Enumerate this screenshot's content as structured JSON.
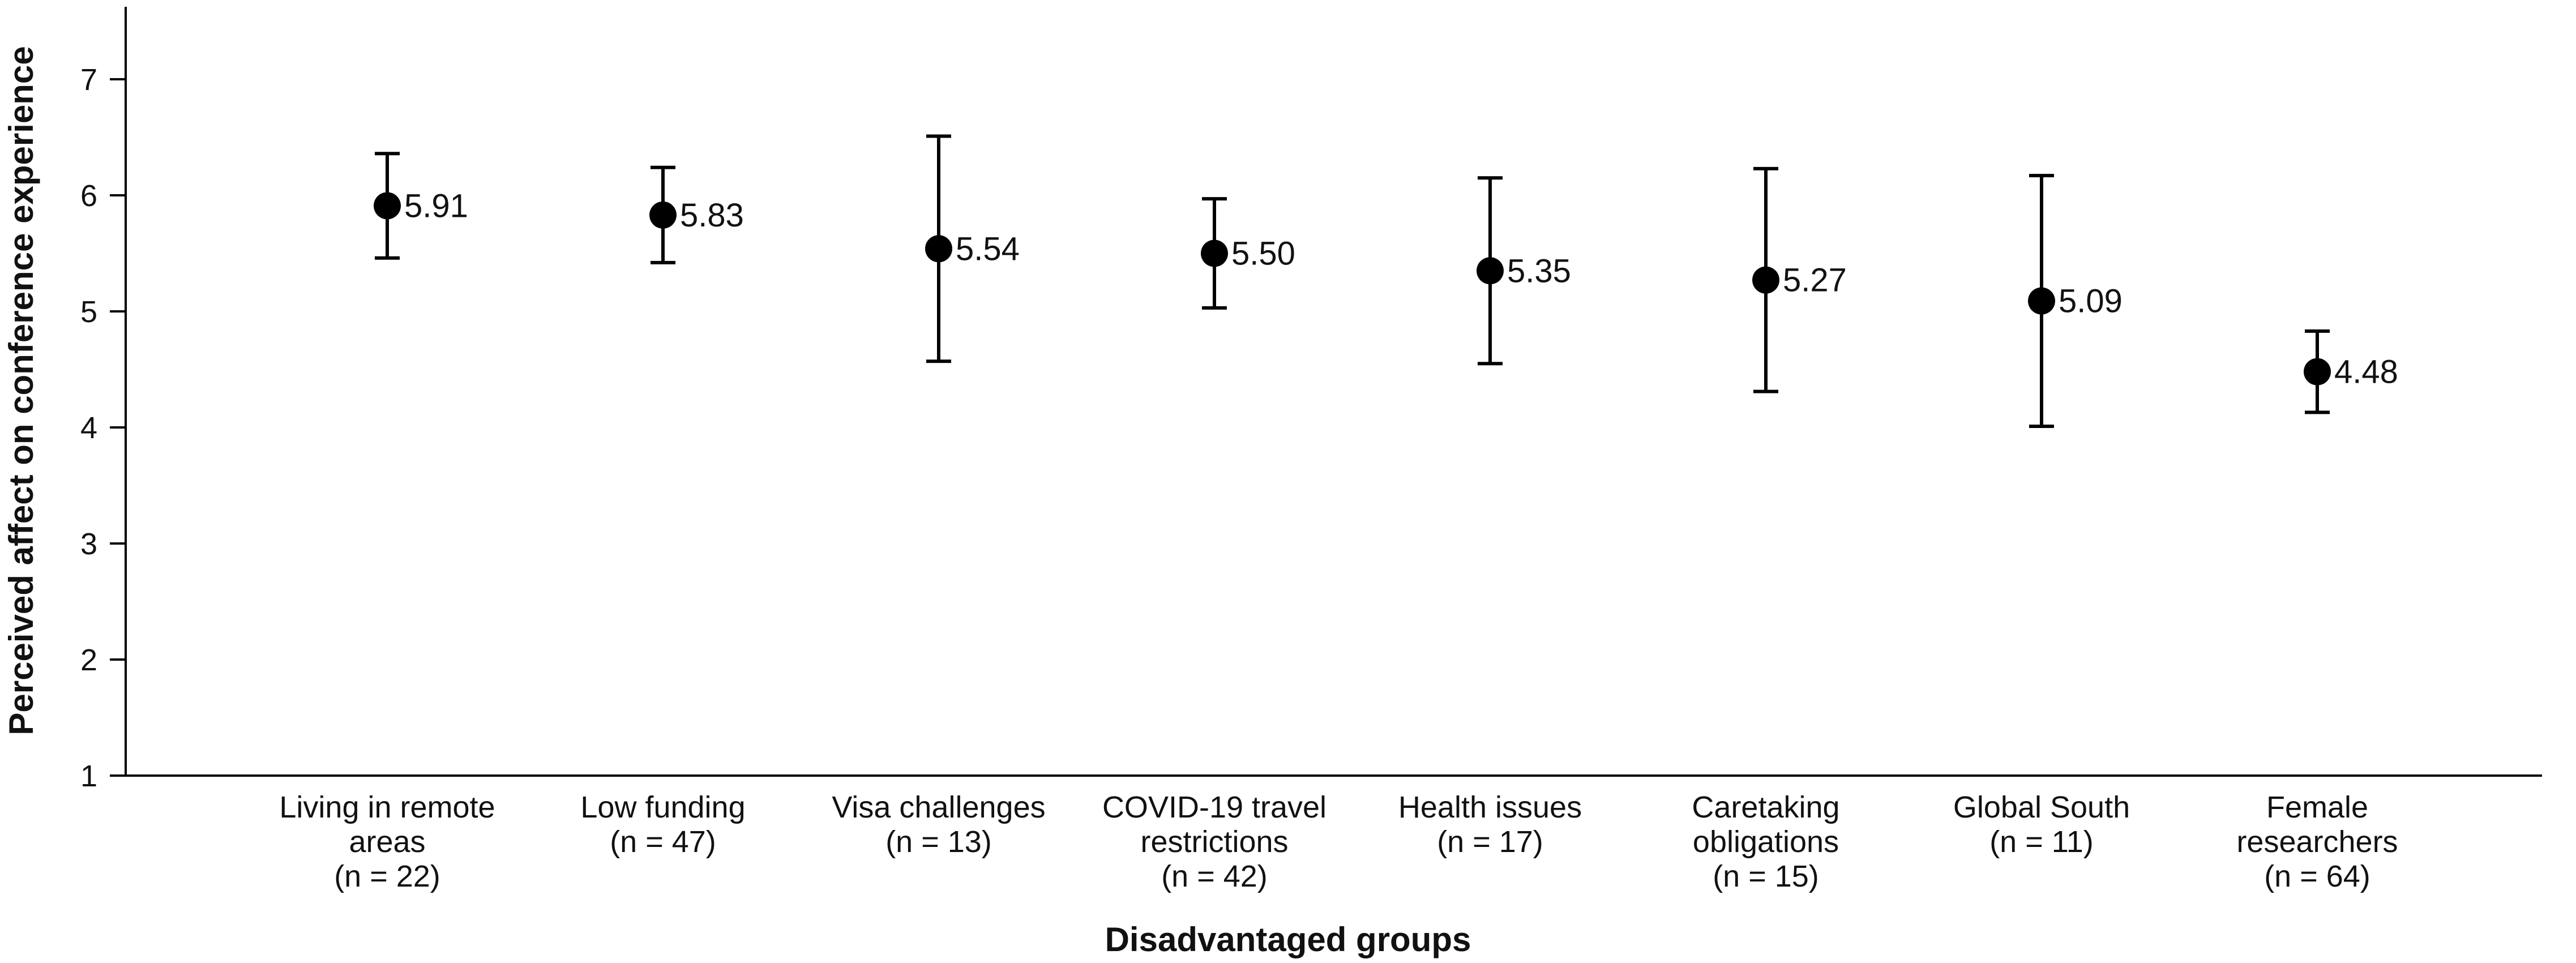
{
  "chart_data": {
    "type": "scatter",
    "subtype": "point-with-error-bars",
    "xlabel": "Disadvantaged groups",
    "ylabel": "Perceived affect on conference experience",
    "ylim": [
      1,
      7.7
    ],
    "yticks": [
      "1",
      "2",
      "3",
      "4",
      "5",
      "6",
      "7"
    ],
    "grid": false,
    "legend": "none",
    "colors": {
      "marker": "#000000",
      "axis": "#000000",
      "text": "#111111"
    },
    "categories": [
      {
        "lines": [
          "Living in remote",
          "areas",
          "(n = 22)"
        ],
        "value": 5.91,
        "value_label": "5.91",
        "err_low": 5.46,
        "err_high": 6.36
      },
      {
        "lines": [
          "Low funding",
          "(n = 47)"
        ],
        "value": 5.83,
        "value_label": "5.83",
        "err_low": 5.42,
        "err_high": 6.24
      },
      {
        "lines": [
          "Visa challenges",
          "(n = 13)"
        ],
        "value": 5.54,
        "value_label": "5.54",
        "err_low": 4.57,
        "err_high": 6.51
      },
      {
        "lines": [
          "COVID-19 travel",
          "restrictions",
          "(n = 42)"
        ],
        "value": 5.5,
        "value_label": "5.50",
        "err_low": 5.03,
        "err_high": 5.97
      },
      {
        "lines": [
          "Health issues",
          "(n = 17)"
        ],
        "value": 5.35,
        "value_label": "5.35",
        "err_low": 4.55,
        "err_high": 6.15
      },
      {
        "lines": [
          "Caretaking",
          "obligations",
          "(n = 15)"
        ],
        "value": 5.27,
        "value_label": "5.27",
        "err_low": 4.31,
        "err_high": 6.23
      },
      {
        "lines": [
          "Global South",
          "(n = 11)"
        ],
        "value": 5.09,
        "value_label": "5.09",
        "err_low": 4.01,
        "err_high": 6.17
      },
      {
        "lines": [
          "Female",
          "researchers",
          "(n = 64)"
        ],
        "value": 4.48,
        "value_label": "4.48",
        "err_low": 4.13,
        "err_high": 4.83
      }
    ]
  }
}
